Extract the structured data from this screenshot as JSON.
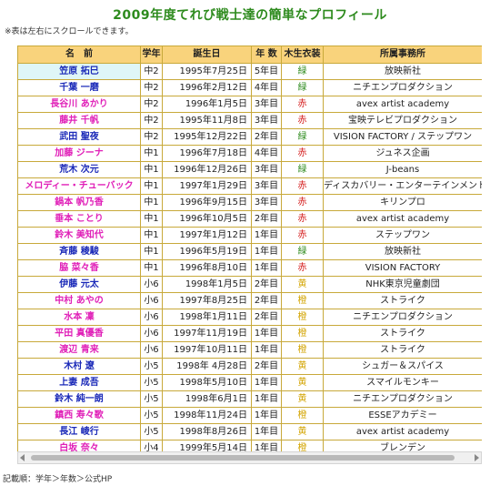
{
  "title": "2009年度てれび戦士達の簡単なプロフィール",
  "note": "※表は左右にスクロールできます。",
  "headers": [
    "名　前",
    "学年",
    "誕生日",
    "年 数",
    "木生衣装",
    "所属事務所"
  ],
  "rows": [
    {
      "name": "笠原 拓巳",
      "gender": "boy",
      "grade": "中2",
      "birthday": "1995年7月25日",
      "years": "5年目",
      "costume": "緑",
      "color": "green",
      "agency": "放映新社"
    },
    {
      "name": "千葉 一磨",
      "gender": "boy",
      "grade": "中2",
      "birthday": "1996年2月12日",
      "years": "4年目",
      "costume": "緑",
      "color": "green",
      "agency": "ニチエンプロダクション"
    },
    {
      "name": "長谷川 あかり",
      "gender": "girl",
      "grade": "中2",
      "birthday": "1996年1月5日",
      "years": "3年目",
      "costume": "赤",
      "color": "red",
      "agency": "avex artist academy"
    },
    {
      "name": "藤井 千帆",
      "gender": "girl",
      "grade": "中2",
      "birthday": "1995年11月8日",
      "years": "3年目",
      "costume": "赤",
      "color": "red",
      "agency": "宝映テレビプロダクション"
    },
    {
      "name": "武田 聖夜",
      "gender": "boy",
      "grade": "中2",
      "birthday": "1995年12月22日",
      "years": "2年目",
      "costume": "緑",
      "color": "green",
      "agency": "VISION FACTORY / ステップワン"
    },
    {
      "name": "加藤 ジーナ",
      "gender": "girl",
      "grade": "中1",
      "birthday": "1996年7月18日",
      "years": "4年目",
      "costume": "赤",
      "color": "red",
      "agency": "ジュネス企画"
    },
    {
      "name": "荒木 次元",
      "gender": "boy",
      "grade": "中1",
      "birthday": "1996年12月26日",
      "years": "3年目",
      "costume": "緑",
      "color": "green",
      "agency": "J-beans"
    },
    {
      "name": "メロディー・チューバック",
      "gender": "girl",
      "grade": "中1",
      "birthday": "1997年1月29日",
      "years": "3年目",
      "costume": "赤",
      "color": "red",
      "agency": "ディスカバリー・エンターテインメント"
    },
    {
      "name": "鍋本 帆乃香",
      "gender": "girl",
      "grade": "中1",
      "birthday": "1996年9月15日",
      "years": "3年目",
      "costume": "赤",
      "color": "red",
      "agency": "キリンプロ"
    },
    {
      "name": "垂本 ことり",
      "gender": "girl",
      "grade": "中1",
      "birthday": "1996年10月5日",
      "years": "2年目",
      "costume": "赤",
      "color": "red",
      "agency": "avex artist academy"
    },
    {
      "name": "鈴木 美知代",
      "gender": "girl",
      "grade": "中1",
      "birthday": "1997年1月12日",
      "years": "1年目",
      "costume": "赤",
      "color": "red",
      "agency": "ステップワン"
    },
    {
      "name": "斉藤 稜駿",
      "gender": "boy",
      "grade": "中1",
      "birthday": "1996年5月19日",
      "years": "1年目",
      "costume": "緑",
      "color": "green",
      "agency": "放映新社"
    },
    {
      "name": "脇 菜々香",
      "gender": "girl",
      "grade": "中1",
      "birthday": "1996年8月10日",
      "years": "1年目",
      "costume": "赤",
      "color": "red",
      "agency": "VISION FACTORY"
    },
    {
      "name": "伊藤 元太",
      "gender": "boy",
      "grade": "小6",
      "birthday": "1998年1月5日",
      "years": "2年目",
      "costume": "黄",
      "color": "yellow",
      "agency": "NHK東京児童劇団"
    },
    {
      "name": "中村 あやの",
      "gender": "girl",
      "grade": "小6",
      "birthday": "1997年8月25日",
      "years": "2年目",
      "costume": "橙",
      "color": "yellow",
      "agency": "ストライク"
    },
    {
      "name": "水本 凜",
      "gender": "girl",
      "grade": "小6",
      "birthday": "1998年1月11日",
      "years": "2年目",
      "costume": "橙",
      "color": "yellow",
      "agency": "ニチエンプロダクション"
    },
    {
      "name": "平田 真優香",
      "gender": "girl",
      "grade": "小6",
      "birthday": "1997年11月19日",
      "years": "1年目",
      "costume": "橙",
      "color": "yellow",
      "agency": "ストライク"
    },
    {
      "name": "渡辺 青来",
      "gender": "girl",
      "grade": "小6",
      "birthday": "1997年10月11日",
      "years": "1年目",
      "costume": "橙",
      "color": "yellow",
      "agency": "ストライク"
    },
    {
      "name": "木村 遼",
      "gender": "boy",
      "grade": "小5",
      "birthday": "1998年 4月28日",
      "years": "2年目",
      "costume": "黄",
      "color": "yellow",
      "agency": "シュガー＆スパイス"
    },
    {
      "name": "上妻 成吾",
      "gender": "boy",
      "grade": "小5",
      "birthday": "1998年5月10日",
      "years": "1年目",
      "costume": "黄",
      "color": "yellow",
      "agency": "スマイルモンキー"
    },
    {
      "name": "鈴木 純一朗",
      "gender": "boy",
      "grade": "小5",
      "birthday": "1998年6月1日",
      "years": "1年目",
      "costume": "黄",
      "color": "yellow",
      "agency": "ニチエンプロダクション"
    },
    {
      "name": "鎮西 寿々歌",
      "gender": "girl",
      "grade": "小5",
      "birthday": "1998年11月24日",
      "years": "1年目",
      "costume": "橙",
      "color": "yellow",
      "agency": "ESSEアカデミー"
    },
    {
      "name": "長江 崚行",
      "gender": "boy",
      "grade": "小5",
      "birthday": "1998年8月26日",
      "years": "1年目",
      "costume": "黄",
      "color": "yellow",
      "agency": "avex artist academy"
    },
    {
      "name": "白坂 奈々",
      "gender": "girl",
      "grade": "小4",
      "birthday": "1999年5月14日",
      "years": "1年目",
      "costume": "橙",
      "color": "yellow",
      "agency": "ブレンデン"
    }
  ],
  "footer": "記載順：学年＞年数＞公式HP",
  "colors": {
    "title": "#2e8b1e",
    "header_bg": "#f9d37c",
    "boy": "#1a29b8",
    "girl": "#e020b8",
    "green": "#2e8b1e",
    "red": "#d41b1b",
    "yellow": "#d3a400",
    "highlight": "#dff6f7"
  }
}
